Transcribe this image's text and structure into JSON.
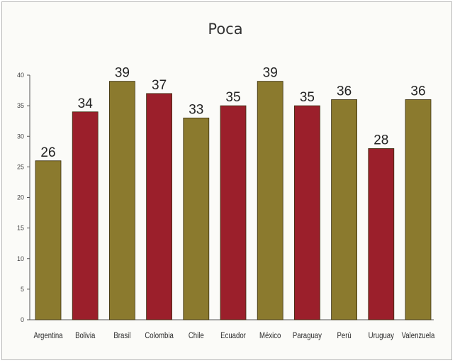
{
  "chart_data": {
    "type": "bar",
    "title": "Poca",
    "xlabel": "",
    "ylabel": "",
    "ylim": [
      0,
      40
    ],
    "yticks": [
      "0",
      "5",
      "10",
      "15",
      "20",
      "25",
      "30",
      "35",
      "40"
    ],
    "categories": [
      "Argentina",
      "Bolivia",
      "Brasil",
      "Colombia",
      "Chile",
      "Ecuador",
      "México",
      "Paraguay",
      "Perú",
      "Uruguay",
      "Valenzuela"
    ],
    "values": [
      26,
      34,
      39,
      37,
      33,
      35,
      39,
      35,
      36,
      28,
      36
    ],
    "value_labels": [
      "26",
      "34",
      "39",
      "37",
      "33",
      "35",
      "39",
      "35",
      "36",
      "28",
      "36"
    ],
    "bar_colors": [
      "#8b7a2e",
      "#9b1f2b",
      "#8b7a2e",
      "#9b1f2b",
      "#8b7a2e",
      "#9b1f2b",
      "#8b7a2e",
      "#9b1f2b",
      "#8b7a2e",
      "#9b1f2b",
      "#8b7a2e"
    ],
    "grid": false,
    "legend": "none"
  }
}
